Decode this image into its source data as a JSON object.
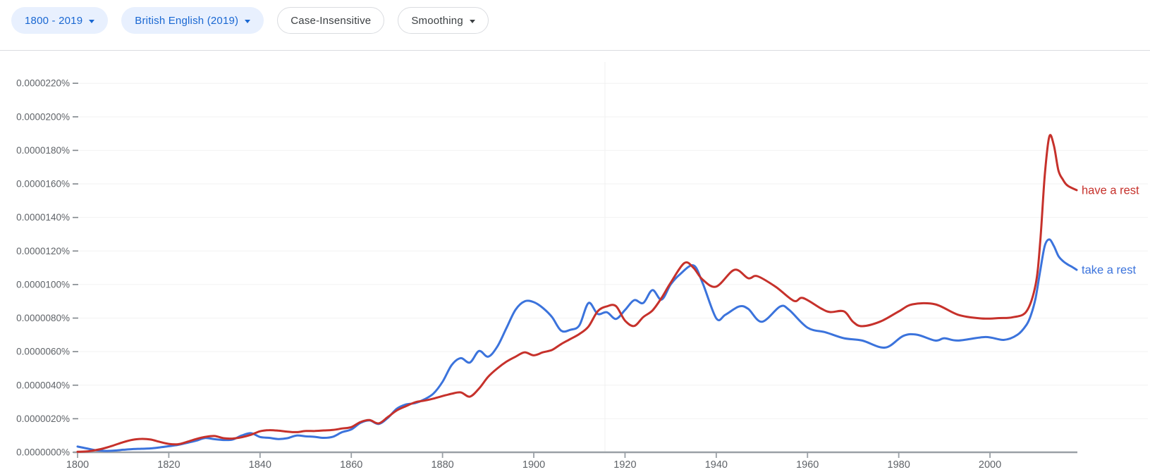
{
  "toolbar": {
    "date_range": {
      "label": "1800 - 2019",
      "has_dropdown": true
    },
    "corpus": {
      "label": "British English (2019)",
      "has_dropdown": true
    },
    "case": {
      "label": "Case-Insensitive",
      "has_dropdown": false
    },
    "smoothing": {
      "label": "Smoothing",
      "has_dropdown": true
    }
  },
  "colors": {
    "chip_bg": "#e8f0fe",
    "chip_text": "#1967d2",
    "axis": "#9aa0a6",
    "tick_text": "#5f6368",
    "gridline": "#f2f2f2",
    "series_have_a_rest": "#c6312b",
    "series_take_a_rest": "#3b73dc"
  },
  "chart_data": {
    "type": "line",
    "title": "Ngram frequency of phrases, British English (2019) corpus, 1800-2019, case-insensitive, smoothed",
    "x_axis": {
      "range": [
        1800,
        2019
      ],
      "tick_labels": [
        "1800",
        "1820",
        "1840",
        "1860",
        "1880",
        "1900",
        "1920",
        "1940",
        "1960",
        "1980",
        "2000"
      ],
      "tick_years": [
        1800,
        1820,
        1840,
        1860,
        1880,
        1900,
        1920,
        1940,
        1960,
        1980,
        2000
      ]
    },
    "y_axis": {
      "range_labels": [
        "0.0000000%",
        "0.0000220%"
      ],
      "tick_labels": [
        "0.0000000%",
        "0.0000020%",
        "0.0000040%",
        "0.0000060%",
        "0.0000080%",
        "0.0000100%",
        "0.0000120%",
        "0.0000140%",
        "0.0000160%",
        "0.0000180%",
        "0.0000200%",
        "0.0000220%"
      ],
      "tick_step_value": 20,
      "unit": "values below are in units of 0.0000001%"
    },
    "grid": "horizontal-only",
    "legend_position": "line-end-labels-right",
    "series": [
      {
        "name": "take a rest",
        "color": "#3b73dc",
        "points": [
          [
            1800,
            3.4
          ],
          [
            1802,
            2.3
          ],
          [
            1804,
            1.2
          ],
          [
            1806,
            0.8
          ],
          [
            1808,
            1.0
          ],
          [
            1810,
            1.5
          ],
          [
            1812,
            1.9
          ],
          [
            1814,
            2.1
          ],
          [
            1816,
            2.3
          ],
          [
            1818,
            2.9
          ],
          [
            1820,
            3.6
          ],
          [
            1822,
            4.4
          ],
          [
            1824,
            5.6
          ],
          [
            1826,
            6.9
          ],
          [
            1828,
            8.5
          ],
          [
            1830,
            7.8
          ],
          [
            1832,
            7.3
          ],
          [
            1834,
            7.6
          ],
          [
            1836,
            10.0
          ],
          [
            1838,
            11.4
          ],
          [
            1840,
            9.1
          ],
          [
            1842,
            8.6
          ],
          [
            1844,
            7.9
          ],
          [
            1846,
            8.4
          ],
          [
            1848,
            10.0
          ],
          [
            1850,
            9.5
          ],
          [
            1852,
            9.2
          ],
          [
            1854,
            8.6
          ],
          [
            1856,
            9.3
          ],
          [
            1858,
            12.0
          ],
          [
            1860,
            13.6
          ],
          [
            1862,
            17.5
          ],
          [
            1864,
            19.0
          ],
          [
            1866,
            16.9
          ],
          [
            1868,
            20.5
          ],
          [
            1870,
            26.0
          ],
          [
            1872,
            28.5
          ],
          [
            1874,
            29.3
          ],
          [
            1876,
            31.5
          ],
          [
            1878,
            35.0
          ],
          [
            1880,
            42.0
          ],
          [
            1882,
            52.0
          ],
          [
            1884,
            56.1
          ],
          [
            1886,
            53.5
          ],
          [
            1888,
            60.4
          ],
          [
            1890,
            57.0
          ],
          [
            1892,
            63.0
          ],
          [
            1894,
            74.0
          ],
          [
            1896,
            85.0
          ],
          [
            1898,
            90.0
          ],
          [
            1900,
            89.5
          ],
          [
            1902,
            86.0
          ],
          [
            1904,
            80.6
          ],
          [
            1906,
            72.5
          ],
          [
            1908,
            73.0
          ],
          [
            1910,
            75.7
          ],
          [
            1912,
            89.0
          ],
          [
            1914,
            82.5
          ],
          [
            1916,
            83.5
          ],
          [
            1918,
            79.5
          ],
          [
            1920,
            84.8
          ],
          [
            1922,
            90.7
          ],
          [
            1924,
            89.0
          ],
          [
            1926,
            96.7
          ],
          [
            1928,
            91.0
          ],
          [
            1930,
            100.0
          ],
          [
            1932,
            106.0
          ],
          [
            1935,
            111.4
          ],
          [
            1937,
            101.0
          ],
          [
            1940,
            79.9
          ],
          [
            1942,
            82.0
          ],
          [
            1945,
            86.9
          ],
          [
            1947,
            85.5
          ],
          [
            1950,
            77.8
          ],
          [
            1954,
            86.9
          ],
          [
            1956,
            84.8
          ],
          [
            1960,
            74.3
          ],
          [
            1964,
            71.5
          ],
          [
            1968,
            68.0
          ],
          [
            1972,
            66.6
          ],
          [
            1977,
            62.4
          ],
          [
            1981,
            69.4
          ],
          [
            1984,
            70.1
          ],
          [
            1988,
            66.6
          ],
          [
            1990,
            68.0
          ],
          [
            1993,
            66.6
          ],
          [
            1999,
            68.7
          ],
          [
            2003,
            67.0
          ],
          [
            2006,
            70.0
          ],
          [
            2008,
            76.0
          ],
          [
            2009,
            82.0
          ],
          [
            2010,
            92.0
          ],
          [
            2011,
            108.0
          ],
          [
            2012,
            123.0
          ],
          [
            2013,
            126.9
          ],
          [
            2014,
            123.0
          ],
          [
            2015,
            117.0
          ],
          [
            2016,
            114.0
          ],
          [
            2017,
            112.0
          ],
          [
            2018,
            110.5
          ],
          [
            2019,
            108.8
          ]
        ]
      },
      {
        "name": "have a rest",
        "color": "#c6312b",
        "points": [
          [
            1800,
            0.3
          ],
          [
            1802,
            0.5
          ],
          [
            1804,
            1.3
          ],
          [
            1806,
            2.5
          ],
          [
            1808,
            4.2
          ],
          [
            1810,
            6.0
          ],
          [
            1812,
            7.4
          ],
          [
            1814,
            8.0
          ],
          [
            1816,
            7.6
          ],
          [
            1818,
            6.2
          ],
          [
            1820,
            5.0
          ],
          [
            1822,
            4.8
          ],
          [
            1824,
            6.2
          ],
          [
            1826,
            7.9
          ],
          [
            1828,
            9.2
          ],
          [
            1830,
            9.7
          ],
          [
            1832,
            8.4
          ],
          [
            1834,
            8.2
          ],
          [
            1836,
            9.0
          ],
          [
            1838,
            10.4
          ],
          [
            1840,
            12.5
          ],
          [
            1842,
            13.2
          ],
          [
            1844,
            12.9
          ],
          [
            1846,
            12.3
          ],
          [
            1848,
            12.0
          ],
          [
            1850,
            12.7
          ],
          [
            1852,
            12.7
          ],
          [
            1854,
            13.0
          ],
          [
            1856,
            13.3
          ],
          [
            1858,
            14.2
          ],
          [
            1860,
            15.0
          ],
          [
            1862,
            18.0
          ],
          [
            1864,
            19.2
          ],
          [
            1866,
            17.2
          ],
          [
            1868,
            21.0
          ],
          [
            1870,
            25.0
          ],
          [
            1872,
            27.5
          ],
          [
            1874,
            29.8
          ],
          [
            1876,
            30.8
          ],
          [
            1878,
            32.0
          ],
          [
            1880,
            33.5
          ],
          [
            1882,
            34.9
          ],
          [
            1884,
            35.7
          ],
          [
            1886,
            33.2
          ],
          [
            1888,
            38.0
          ],
          [
            1890,
            45.0
          ],
          [
            1892,
            50.0
          ],
          [
            1894,
            54.0
          ],
          [
            1896,
            57.0
          ],
          [
            1898,
            59.6
          ],
          [
            1900,
            57.8
          ],
          [
            1902,
            59.6
          ],
          [
            1904,
            61.0
          ],
          [
            1906,
            64.5
          ],
          [
            1908,
            67.5
          ],
          [
            1910,
            70.5
          ],
          [
            1912,
            75.0
          ],
          [
            1914,
            84.0
          ],
          [
            1916,
            87.0
          ],
          [
            1918,
            87.2
          ],
          [
            1920,
            78.5
          ],
          [
            1922,
            75.3
          ],
          [
            1924,
            80.6
          ],
          [
            1926,
            84.5
          ],
          [
            1928,
            92.0
          ],
          [
            1930,
            101.0
          ],
          [
            1933,
            112.8
          ],
          [
            1935,
            110.0
          ],
          [
            1937,
            103.0
          ],
          [
            1940,
            98.8
          ],
          [
            1944,
            108.8
          ],
          [
            1947,
            103.8
          ],
          [
            1949,
            105.0
          ],
          [
            1953,
            98.7
          ],
          [
            1957,
            90.3
          ],
          [
            1959,
            92.0
          ],
          [
            1963,
            85.7
          ],
          [
            1965,
            83.6
          ],
          [
            1968,
            84.0
          ],
          [
            1970,
            77.7
          ],
          [
            1972,
            75.2
          ],
          [
            1976,
            78.0
          ],
          [
            1980,
            84.0
          ],
          [
            1983,
            88.2
          ],
          [
            1988,
            88.2
          ],
          [
            1993,
            82.0
          ],
          [
            1998,
            79.8
          ],
          [
            2002,
            80.0
          ],
          [
            2005,
            80.5
          ],
          [
            2008,
            84.0
          ],
          [
            2010,
            100.0
          ],
          [
            2011,
            125.0
          ],
          [
            2012,
            165.0
          ],
          [
            2013,
            188.2
          ],
          [
            2014,
            183.0
          ],
          [
            2015,
            168.0
          ],
          [
            2016,
            162.5
          ],
          [
            2017,
            159.0
          ],
          [
            2019,
            156.3
          ]
        ]
      }
    ]
  }
}
